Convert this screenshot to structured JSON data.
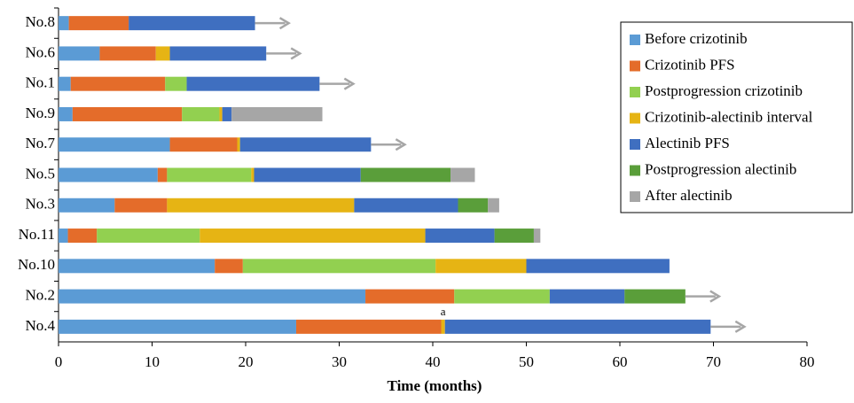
{
  "chart_data": {
    "type": "stacked-barh",
    "xlabel": "Time (months)",
    "categories": [
      "No.8",
      "No.6",
      "No.1",
      "No.9",
      "No.7",
      "No.5",
      "No.3",
      "No.11",
      "No.10",
      "No.2",
      "No.4"
    ],
    "series": [
      {
        "name": "Before crizotinib",
        "color": "#5b9bd5",
        "values": [
          1.1,
          4.4,
          1.3,
          1.5,
          11.9,
          10.6,
          6.0,
          1.0,
          16.7,
          32.8,
          25.4
        ]
      },
      {
        "name": "Crizotinib PFS",
        "color": "#e46c2a",
        "values": [
          6.4,
          6.0,
          10.1,
          11.7,
          7.2,
          1.0,
          5.6,
          3.1,
          3.0,
          9.5,
          15.5
        ]
      },
      {
        "name": "Postprogression crizotinib",
        "color": "#92d050",
        "values": [
          0,
          0,
          2.3,
          4.0,
          0,
          9.0,
          0,
          11.0,
          20.6,
          10.2,
          0
        ]
      },
      {
        "name": "Crizotinib-alectinib interval",
        "color": "#e6b414",
        "values": [
          0,
          1.5,
          0,
          0.3,
          0.3,
          0.3,
          20.0,
          24.1,
          9.7,
          0,
          0.4
        ]
      },
      {
        "name": "Alectinib PFS",
        "color": "#3f6fc0",
        "values": [
          13.5,
          10.3,
          14.2,
          1.0,
          14.0,
          11.4,
          11.1,
          7.4,
          15.3,
          8.0,
          28.4
        ]
      },
      {
        "name": "Postprogression alectinib",
        "color": "#5a9e3a",
        "values": [
          0,
          0,
          0,
          0,
          0,
          9.6,
          3.2,
          4.2,
          0,
          6.5,
          0
        ]
      },
      {
        "name": "After alectinib",
        "color": "#a6a6a6",
        "values": [
          0,
          0,
          0,
          9.7,
          0,
          2.6,
          1.2,
          0.7,
          0,
          0,
          0
        ]
      }
    ],
    "ongoing": [
      true,
      true,
      true,
      false,
      true,
      false,
      false,
      false,
      false,
      true,
      true
    ],
    "annotation": {
      "text": "a",
      "category_index": 10,
      "series_index": 3
    },
    "xlim": [
      0,
      80
    ],
    "xticks": [
      0,
      10,
      20,
      30,
      40,
      50,
      60,
      70,
      80
    ]
  }
}
